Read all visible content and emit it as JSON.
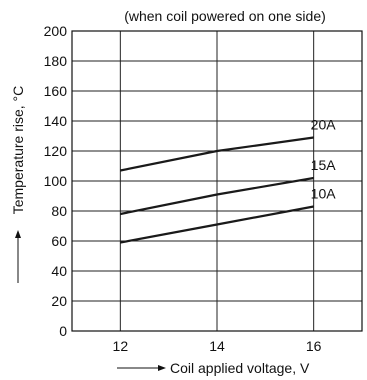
{
  "chart_data": {
    "type": "line",
    "title": "(when coil powered on one side)",
    "xlabel": "Coil applied voltage, V",
    "ylabel": "Temperature rise, °C",
    "xlim": [
      11,
      17
    ],
    "ylim": [
      0,
      200
    ],
    "x_ticks": [
      12,
      14,
      16
    ],
    "y_ticks": [
      0,
      20,
      40,
      60,
      80,
      100,
      120,
      140,
      160,
      180,
      200
    ],
    "x_grid": [
      12,
      14,
      16
    ],
    "y_grid": [
      0,
      20,
      40,
      60,
      80,
      100,
      120,
      140,
      160,
      180,
      200
    ],
    "grid": true,
    "colors": {
      "line": "#1a1a1a",
      "grid": "#222222",
      "background": "#ffffff"
    },
    "series": [
      {
        "name": "20A",
        "x": [
          12,
          14,
          16
        ],
        "y": [
          107,
          120,
          129
        ]
      },
      {
        "name": "15A",
        "x": [
          12,
          14,
          16
        ],
        "y": [
          78,
          91,
          102
        ]
      },
      {
        "name": "10A",
        "x": [
          12,
          14,
          16
        ],
        "y": [
          59,
          71,
          83
        ]
      }
    ]
  }
}
